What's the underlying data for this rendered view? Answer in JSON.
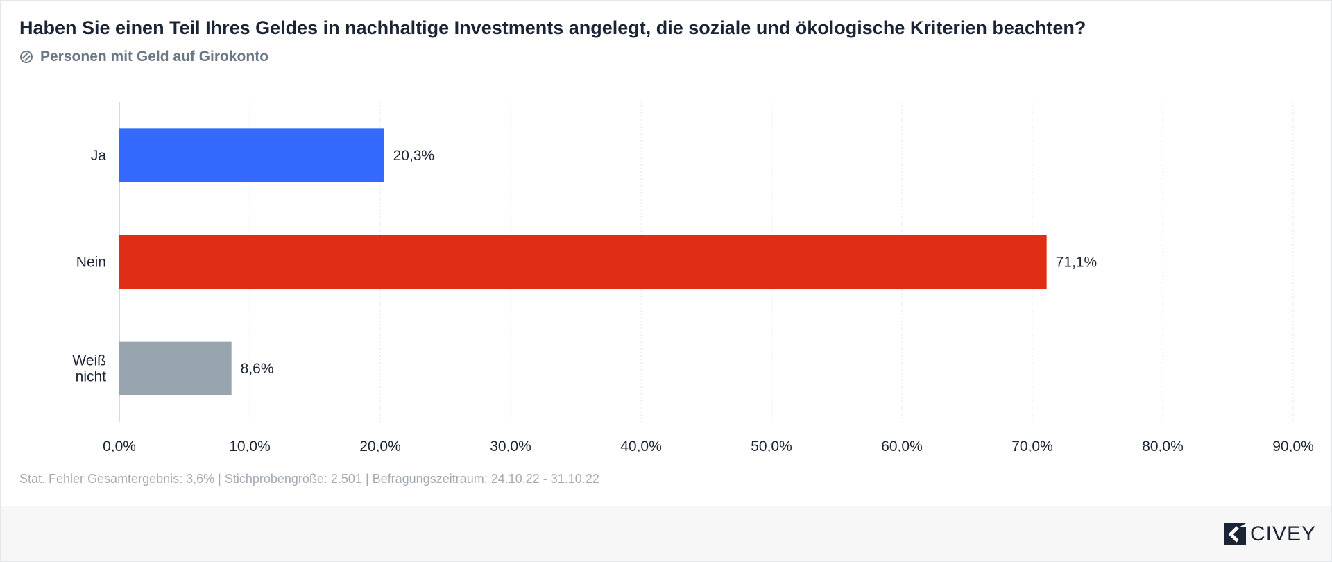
{
  "title": "Haben Sie einen Teil Ihres Geldes in nachhaltige Investments angelegt, die soziale und ökologische Kriterien beachten?",
  "subtitle": "Personen mit Geld auf Girokonto",
  "subtitle_icon": "filter-icon",
  "footnote": "Stat. Fehler Gesamtergebnis: 3,6% | Stichprobengröße: 2.501 | Befragungszeitraum: 24.10.22 - 31.10.22",
  "brand": {
    "name": "CIVEY",
    "icon": "civey-logo-icon"
  },
  "chart_data": {
    "type": "bar",
    "orientation": "horizontal",
    "categories": [
      "Ja",
      "Nein",
      "Weiß nicht"
    ],
    "category_lines": [
      [
        "Ja"
      ],
      [
        "Nein"
      ],
      [
        "Weiß",
        "nicht"
      ]
    ],
    "values": [
      20.3,
      71.1,
      8.6
    ],
    "value_labels": [
      "20,3%",
      "71,1%",
      "8,6%"
    ],
    "colors": [
      "#3369fd",
      "#e02d15",
      "#99a5ae"
    ],
    "xlim": [
      0,
      90
    ],
    "xticks": [
      0,
      10,
      20,
      30,
      40,
      50,
      60,
      70,
      80,
      90
    ],
    "xtick_labels": [
      "0,0%",
      "10,0%",
      "20,0%",
      "30,0%",
      "40,0%",
      "50,0%",
      "60,0%",
      "70,0%",
      "80,0%",
      "90,0%"
    ],
    "grid": true,
    "legend": "none"
  }
}
